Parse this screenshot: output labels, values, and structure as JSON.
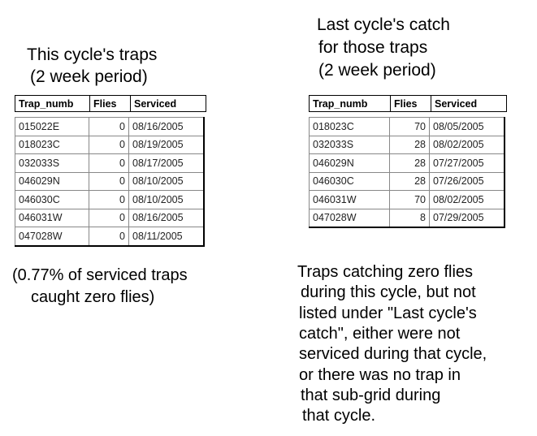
{
  "left": {
    "title_lines": [
      "This cycle's traps",
      "(2 week period)"
    ],
    "table": {
      "columns": [
        "Trap_numb",
        "Flies",
        "Serviced"
      ],
      "rows": [
        [
          "015022E",
          0,
          "08/16/2005"
        ],
        [
          "018023C",
          0,
          "08/19/2005"
        ],
        [
          "032033S",
          0,
          "08/17/2005"
        ],
        [
          "046029N",
          0,
          "08/10/2005"
        ],
        [
          "046030C",
          0,
          "08/10/2005"
        ],
        [
          "046031W",
          0,
          "08/16/2005"
        ],
        [
          "047028W",
          0,
          "08/11/2005"
        ]
      ]
    },
    "note_lines": [
      "(0.77% of serviced traps",
      "caught zero flies)"
    ]
  },
  "right": {
    "title_lines": [
      "Last cycle's catch",
      "for those traps",
      "(2 week period)"
    ],
    "table": {
      "columns": [
        "Trap_numb",
        "Flies",
        "Serviced"
      ],
      "rows": [
        [
          "018023C",
          70,
          "08/05/2005"
        ],
        [
          "032033S",
          28,
          "08/02/2005"
        ],
        [
          "046029N",
          28,
          "07/27/2005"
        ],
        [
          "046030C",
          28,
          "07/26/2005"
        ],
        [
          "046031W",
          70,
          "08/02/2005"
        ],
        [
          "047028W",
          8,
          "07/29/2005"
        ]
      ]
    },
    "note_lines": [
      "Traps catching zero flies",
      "during this cycle, but not",
      "listed under \"Last cycle's",
      "catch\", either were not",
      "serviced during that cycle,",
      "or there was no trap in",
      "that sub-grid during",
      "that cycle."
    ]
  }
}
